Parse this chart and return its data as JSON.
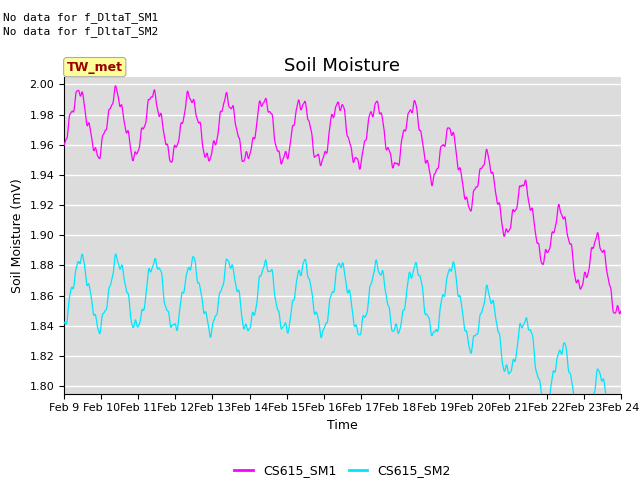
{
  "title": "Soil Moisture",
  "ylabel": "Soil Moisture (mV)",
  "xlabel": "Time",
  "annotation_lines": [
    "No data for f_DltaT_SM1",
    "No data for f_DltaT_SM2"
  ],
  "tw_met_label": "TW_met",
  "tw_met_box_color": "#ffff99",
  "tw_met_text_color": "#990000",
  "legend_labels": [
    "CS615_SM1",
    "CS615_SM2"
  ],
  "line_color_sm1": "#ff00ff",
  "line_color_sm2": "#00e5ff",
  "ylim": [
    1.795,
    2.005
  ],
  "yticks": [
    1.8,
    1.82,
    1.84,
    1.86,
    1.88,
    1.9,
    1.92,
    1.94,
    1.96,
    1.98,
    2.0
  ],
  "bg_color": "#dcdcdc",
  "fig_color": "#ffffff",
  "grid_color": "#ffffff",
  "title_fontsize": 13,
  "label_fontsize": 9,
  "tick_fontsize": 8,
  "annotation_fontsize": 8,
  "n_points": 1500,
  "x_start": 9,
  "x_end": 24,
  "xtick_days": [
    9,
    10,
    11,
    12,
    13,
    14,
    15,
    16,
    17,
    18,
    19,
    20,
    21,
    22,
    23,
    24
  ],
  "xtick_labels": [
    "Feb 9",
    "Feb 10",
    "Feb 11",
    "Feb 12",
    "Feb 13",
    "Feb 14",
    "Feb 15",
    "Feb 16",
    "Feb 17",
    "Feb 18",
    "Feb 19",
    "Feb 20",
    "Feb 21",
    "Feb 22",
    "Feb 23",
    "Feb 24"
  ]
}
